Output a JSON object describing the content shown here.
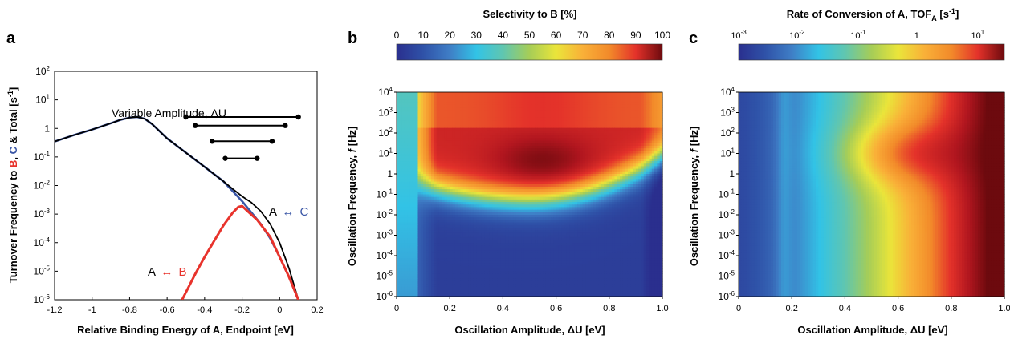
{
  "chart_data": [
    {
      "panel": "a",
      "type": "line",
      "ylabel": "Turnover Frequency to B, C & Total [s-1]",
      "ylabel_parts": [
        "Turnover Frequency to ",
        "B",
        ", ",
        "C",
        " & Total [s",
        "-1",
        "]"
      ],
      "xlabel": "Relative Binding Energy of A, Endpoint [eV]",
      "xlim": [
        -1.2,
        0.2
      ],
      "ylim_log10": [
        -6,
        2
      ],
      "yscale": "log",
      "x_ticks": [
        "-1.2",
        "-1",
        "-0.8",
        "-0.6",
        "-0.4",
        "-0.2",
        "0",
        "0.2"
      ],
      "y_ticks": [
        {
          "base": "10",
          "exp": "2"
        },
        {
          "base": "10",
          "exp": "1"
        },
        {
          "base": "1",
          "exp": ""
        },
        {
          "base": "10",
          "exp": "-1"
        },
        {
          "base": "10",
          "exp": "-2"
        },
        {
          "base": "10",
          "exp": "-3"
        },
        {
          "base": "10",
          "exp": "-4"
        },
        {
          "base": "10",
          "exp": "-5"
        },
        {
          "base": "10",
          "exp": "-6"
        }
      ],
      "annotation_amplitude": "Variable Amplitude, ΔU",
      "label_ab": {
        "left": "A",
        "arrow": "↔",
        "right": "B"
      },
      "label_ac": {
        "left": "A",
        "arrow": "↔",
        "right": "C"
      },
      "vline_x": -0.2,
      "amplitude_ranges": [
        {
          "x0": -0.5,
          "x1": 0.1,
          "y": 0.4
        },
        {
          "x0": -0.45,
          "x1": 0.03,
          "y": 0.1
        },
        {
          "x0": -0.36,
          "x1": -0.04,
          "y": -0.45
        },
        {
          "x0": -0.29,
          "x1": -0.12,
          "y": -1.05
        }
      ],
      "series": [
        {
          "name": "Total",
          "color": "#000000",
          "x": [
            -1.2,
            -1.1,
            -1.0,
            -0.9,
            -0.85,
            -0.8,
            -0.76,
            -0.72,
            -0.68,
            -0.6,
            -0.5,
            -0.4,
            -0.3,
            -0.25,
            -0.2,
            -0.15,
            -0.1,
            -0.05,
            0.0,
            0.05,
            0.1
          ],
          "y_log10": [
            -0.46,
            -0.24,
            -0.04,
            0.18,
            0.3,
            0.38,
            0.4,
            0.34,
            0.15,
            -0.35,
            -0.85,
            -1.35,
            -1.85,
            -2.12,
            -2.38,
            -2.6,
            -2.9,
            -3.35,
            -4.0,
            -4.9,
            -6.0
          ]
        },
        {
          "name": "C",
          "color": "#3a56a6",
          "x": [
            -1.2,
            -1.1,
            -1.0,
            -0.9,
            -0.85,
            -0.8,
            -0.76,
            -0.72,
            -0.68,
            -0.6,
            -0.5,
            -0.4,
            -0.3,
            -0.25,
            -0.2,
            -0.15,
            -0.1,
            -0.05,
            0.0,
            0.05,
            0.1
          ],
          "y_log10": [
            -0.46,
            -0.24,
            -0.04,
            0.18,
            0.3,
            0.38,
            0.4,
            0.34,
            0.15,
            -0.35,
            -0.85,
            -1.35,
            -1.85,
            -2.2,
            -2.55,
            -2.95,
            -3.35,
            -3.85,
            -4.5,
            -5.2,
            -6.0
          ]
        },
        {
          "name": "B",
          "color": "#e8332c",
          "x": [
            -0.52,
            -0.45,
            -0.4,
            -0.35,
            -0.3,
            -0.25,
            -0.22,
            -0.2,
            -0.17,
            -0.12,
            -0.05,
            0.0,
            0.05,
            0.1
          ],
          "y_log10": [
            -6.0,
            -5.1,
            -4.5,
            -3.95,
            -3.4,
            -2.95,
            -2.75,
            -2.72,
            -2.9,
            -3.2,
            -3.8,
            -4.5,
            -5.2,
            -6.0
          ]
        }
      ]
    },
    {
      "panel": "b",
      "type": "heatmap",
      "title": "Selectivity to B [%]",
      "colorbar_ticks": [
        "0",
        "10",
        "20",
        "30",
        "40",
        "50",
        "60",
        "70",
        "80",
        "90",
        "100"
      ],
      "xlabel": "Oscillation Amplitude, ΔU [eV]",
      "ylabel": "Oscillation Frequency, f [Hz]",
      "ylabel_parts": [
        "Oscillation Frequency, ",
        "f",
        " [Hz]"
      ],
      "xlim": [
        0,
        1.0
      ],
      "ylim_log10": [
        -6,
        4
      ],
      "x_ticks": [
        "0",
        "0.2",
        "0.4",
        "0.6",
        "0.8",
        "1.0"
      ],
      "y_ticks": [
        {
          "base": "10",
          "exp": "4"
        },
        {
          "base": "10",
          "exp": "3"
        },
        {
          "base": "10",
          "exp": "2"
        },
        {
          "base": "10",
          "exp": "1"
        },
        {
          "base": "1",
          "exp": ""
        },
        {
          "base": "10",
          "exp": "-1"
        },
        {
          "base": "10",
          "exp": "-2"
        },
        {
          "base": "10",
          "exp": "-3"
        },
        {
          "base": "10",
          "exp": "-4"
        },
        {
          "base": "10",
          "exp": "-5"
        },
        {
          "base": "10",
          "exp": "-6"
        }
      ],
      "value_range": [
        0,
        100
      ]
    },
    {
      "panel": "c",
      "type": "heatmap",
      "title_parts": [
        "Rate of Conversion of A, TOF",
        "A",
        " [s",
        "-1",
        "]"
      ],
      "colorbar_ticks": [
        {
          "base": "10",
          "exp": "-3"
        },
        {
          "base": "10",
          "exp": "-2"
        },
        {
          "base": "10",
          "exp": "-1"
        },
        {
          "base": "1",
          "exp": ""
        },
        {
          "base": "10",
          "exp": "1"
        }
      ],
      "xlabel": "Oscillation Amplitude, ΔU [eV]",
      "ylabel_parts": [
        "Oscillation Frequency, ",
        "f",
        " [Hz]"
      ],
      "xlim": [
        0,
        1.0
      ],
      "ylim_log10": [
        -6,
        4
      ],
      "x_ticks": [
        "0",
        "0.2",
        "0.4",
        "0.6",
        "0.8",
        "1.0"
      ],
      "y_ticks": [
        {
          "base": "10",
          "exp": "4"
        },
        {
          "base": "10",
          "exp": "3"
        },
        {
          "base": "10",
          "exp": "2"
        },
        {
          "base": "10",
          "exp": "1"
        },
        {
          "base": "1",
          "exp": ""
        },
        {
          "base": "10",
          "exp": "-1"
        },
        {
          "base": "10",
          "exp": "-2"
        },
        {
          "base": "10",
          "exp": "-3"
        },
        {
          "base": "10",
          "exp": "-4"
        },
        {
          "base": "10",
          "exp": "-5"
        },
        {
          "base": "10",
          "exp": "-6"
        }
      ],
      "value_range_log10": [
        -3,
        1.5
      ]
    }
  ],
  "colors": {
    "blue_series": "#3a56a6",
    "red_series": "#e8332c",
    "colormap": [
      "#2a2f8e",
      "#2f52a8",
      "#3f7ec6",
      "#32c3e6",
      "#60c6b0",
      "#a6cd57",
      "#eae53a",
      "#f9b038",
      "#f28a2a",
      "#e4322a",
      "#b1161f",
      "#6d0a0e"
    ]
  },
  "panel_letters": [
    "a",
    "b",
    "c"
  ]
}
